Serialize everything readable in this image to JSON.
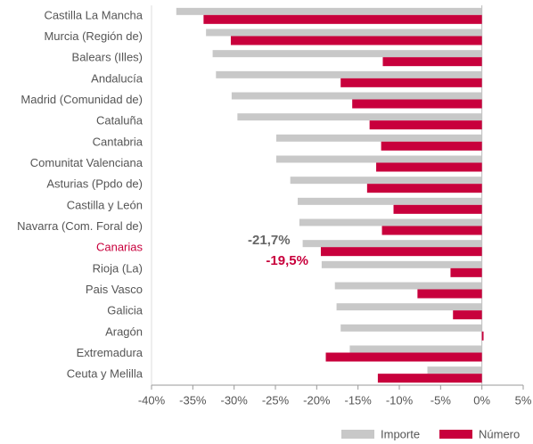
{
  "chart_data": {
    "type": "hbar",
    "categories": [
      "Castilla La Mancha",
      "Murcia (Región de)",
      "Balears (Illes)",
      "Andalucía",
      "Madrid (Comunidad de)",
      "Cataluña",
      "Cantabria",
      "Comunitat Valenciana",
      "Asturias (Ppdo de)",
      "Castilla y León",
      "Navarra (Com. Foral de)",
      "Canarias",
      "Rioja (La)",
      "Pais Vasco",
      "Galicia",
      "Aragón",
      "Extremadura",
      "Ceuta y Melilla"
    ],
    "series": [
      {
        "name": "Importe",
        "color": "#c8c8c8",
        "values": [
          -37.0,
          -33.4,
          -32.6,
          -32.2,
          -30.3,
          -29.6,
          -24.9,
          -24.9,
          -23.2,
          -22.3,
          -22.1,
          -21.7,
          -19.4,
          -17.8,
          -17.6,
          -17.1,
          -16.0,
          -6.6
        ],
        "value_labels": [
          null,
          null,
          null,
          null,
          null,
          null,
          null,
          null,
          null,
          null,
          null,
          "-21,7%",
          null,
          null,
          null,
          null,
          null,
          null
        ],
        "label_color": "#666666"
      },
      {
        "name": "Número",
        "color": "#c8003c",
        "values": [
          -33.7,
          -30.4,
          -12.0,
          -17.1,
          -15.7,
          -13.6,
          -12.2,
          -12.8,
          -13.9,
          -10.7,
          -12.1,
          -19.5,
          -3.8,
          -7.8,
          -3.5,
          0.2,
          -18.9,
          -12.6
        ],
        "value_labels": [
          null,
          null,
          null,
          null,
          null,
          null,
          null,
          null,
          null,
          null,
          null,
          "-19,5%",
          null,
          null,
          null,
          null,
          null,
          null
        ],
        "label_color": "#c8003c"
      }
    ],
    "highlight_categories": [
      "Canarias"
    ],
    "highlight_color": "#c8003c",
    "xlim": [
      -40,
      5
    ],
    "xticks": [
      {
        "value": -40,
        "label": "-40%"
      },
      {
        "value": -35,
        "label": "-35%"
      },
      {
        "value": -30,
        "label": "-30%"
      },
      {
        "value": -25,
        "label": "-25%"
      },
      {
        "value": -20,
        "label": "-20%"
      },
      {
        "value": -15,
        "label": "-15%"
      },
      {
        "value": -10,
        "label": "-10%"
      },
      {
        "value": -5,
        "label": "-5%"
      },
      {
        "value": 0,
        "label": "0%"
      },
      {
        "value": 5,
        "label": "5%"
      }
    ],
    "legend": "bottom-right"
  }
}
